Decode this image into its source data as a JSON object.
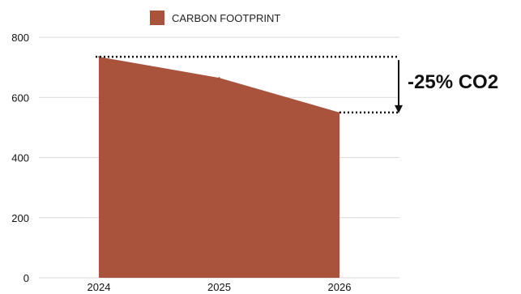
{
  "chart_data": {
    "type": "area",
    "x": [
      "2024",
      "2025",
      "2026"
    ],
    "series": [
      {
        "name": "CARBON FOOTPRINT",
        "values": [
          735,
          665,
          550
        ],
        "color": "#a9533d"
      }
    ],
    "ylim": [
      0,
      800
    ],
    "yticks": [
      "0",
      "200",
      "400",
      "600",
      "800"
    ],
    "grid": true,
    "legend_position": "top-center",
    "annotation": {
      "text": "-25% CO2",
      "from_value": 735,
      "to_value": 550
    }
  }
}
